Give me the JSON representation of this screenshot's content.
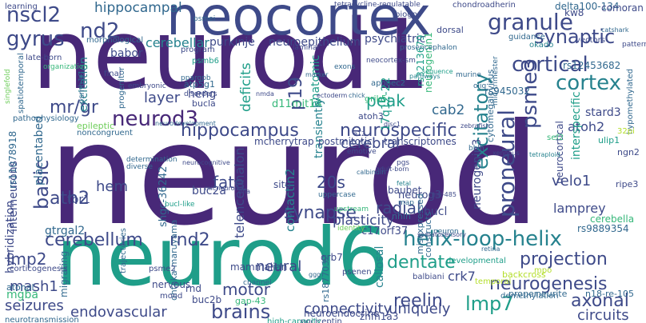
{
  "palette": {
    "c0": "#440154",
    "c1": "#482878",
    "c2": "#3e4a89",
    "c3": "#31688e",
    "c4": "#26828e",
    "c5": "#1f9e89",
    "c6": "#35b779",
    "c7": "#6dcd59",
    "c8": "#b4de2c",
    "c9": "#fde725"
  },
  "words": [
    {
      "text": "neurod",
      "color": "c1"
    },
    {
      "text": "neurod1",
      "color": "c1"
    },
    {
      "text": "neurod6",
      "color": "c5"
    },
    {
      "text": "neocortex",
      "color": "c2"
    },
    {
      "text": "nscl2",
      "color": "c2"
    },
    {
      "text": "gyrus",
      "color": "c2"
    },
    {
      "text": "nd2",
      "color": "c2"
    },
    {
      "text": "hippocampal",
      "color": "c3"
    },
    {
      "text": "neurod3",
      "color": "c1"
    },
    {
      "text": "mr/gr",
      "color": "c2"
    },
    {
      "text": "hippocampus",
      "color": "c2"
    },
    {
      "text": "neurospecific",
      "color": "c2"
    },
    {
      "text": "granule",
      "color": "c2"
    },
    {
      "text": "synaptic",
      "color": "c2"
    },
    {
      "text": "cortical",
      "color": "c2"
    },
    {
      "text": "cortex",
      "color": "c4"
    },
    {
      "text": "psme3",
      "color": "c2"
    },
    {
      "text": "excitatory",
      "color": "c4"
    },
    {
      "text": "proneural",
      "color": "c2"
    },
    {
      "text": "basic",
      "color": "c2"
    },
    {
      "text": "cerebellum",
      "color": "c2"
    },
    {
      "text": "ath2",
      "color": "c2"
    },
    {
      "text": "rnd2",
      "color": "c2"
    },
    {
      "text": "synapse",
      "color": "c2"
    },
    {
      "text": "helix-loop-helix",
      "color": "c4"
    },
    {
      "text": "neurogenesis",
      "color": "c2"
    },
    {
      "text": "projection",
      "color": "c2"
    },
    {
      "text": "dentate",
      "color": "c5"
    },
    {
      "text": "lmp7",
      "color": "c5"
    },
    {
      "text": "axonal",
      "color": "c2"
    },
    {
      "text": "reelin",
      "color": "c2"
    },
    {
      "text": "brains",
      "color": "c2"
    },
    {
      "text": "endovascular",
      "color": "c2"
    },
    {
      "text": "connectivity",
      "color": "c2"
    },
    {
      "text": "uniquely",
      "color": "c2"
    },
    {
      "text": "circuits",
      "color": "c2"
    },
    {
      "text": "seizures",
      "color": "c2"
    },
    {
      "text": "mash1",
      "color": "c2"
    },
    {
      "text": "lmp2",
      "color": "c2"
    },
    {
      "text": "motor",
      "color": "c2"
    },
    {
      "text": "hem",
      "color": "c2"
    },
    {
      "text": "fate",
      "color": "c2"
    },
    {
      "text": "20s",
      "color": "c2"
    },
    {
      "text": "p19",
      "color": "c2"
    },
    {
      "text": "layer",
      "color": "c2"
    },
    {
      "text": "peak",
      "color": "c5"
    },
    {
      "text": "deficits",
      "color": "c5"
    },
    {
      "text": "cerebral",
      "color": "c2"
    },
    {
      "text": "radial",
      "color": "c2"
    },
    {
      "text": "plasticity",
      "color": "c2"
    },
    {
      "text": "neural",
      "color": "c2"
    },
    {
      "text": "crk7",
      "color": "c2"
    },
    {
      "text": "lamprey",
      "color": "c2"
    },
    {
      "text": "cab2",
      "color": "c3"
    },
    {
      "text": "atoh2",
      "color": "c2"
    },
    {
      "text": "stard3",
      "color": "c2"
    },
    {
      "text": "velo1",
      "color": "c2"
    },
    {
      "text": "cerebellar",
      "color": "c4"
    },
    {
      "text": "purkinje",
      "color": "c2"
    },
    {
      "text": "neuroepithelium",
      "color": "c2"
    },
    {
      "text": "psychiatric",
      "color": "c2"
    },
    {
      "text": "babor",
      "color": "c2"
    },
    {
      "text": "heng",
      "color": "c2"
    },
    {
      "text": "tbr1",
      "color": "c2"
    },
    {
      "text": "interneurons",
      "color": "c2"
    },
    {
      "text": "excitation",
      "color": "c4"
    },
    {
      "text": "placentabed",
      "color": "c3"
    },
    {
      "text": "rs11078918",
      "color": "c3"
    },
    {
      "text": "hybridization",
      "color": "c2"
    },
    {
      "text": "gtrgal2",
      "color": "c3"
    },
    {
      "text": "buc2a",
      "color": "c2"
    },
    {
      "text": "buc2b",
      "color": "c2"
    },
    {
      "text": "telencephalon",
      "color": "c2"
    },
    {
      "text": "shgc-36242",
      "color": "c3"
    },
    {
      "text": "contactin2",
      "color": "c4"
    },
    {
      "text": "c17orf37",
      "color": "c2"
    },
    {
      "text": "neurog3",
      "color": "c2"
    },
    {
      "text": "baubet",
      "color": "c2"
    },
    {
      "text": "nhlh",
      "color": "c3"
    },
    {
      "text": "neurogenin3",
      "color": "c2"
    },
    {
      "text": "neurocortical",
      "color": "c2"
    },
    {
      "text": "interspecific",
      "color": "c5"
    },
    {
      "text": "rs9889354",
      "color": "c3"
    },
    {
      "text": "cerebella",
      "color": "c6"
    },
    {
      "text": "kw8",
      "color": "c2"
    },
    {
      "text": "delta100-134",
      "color": "c3"
    },
    {
      "text": "comoran",
      "color": "c2"
    },
    {
      "text": "rs945032",
      "color": "c3"
    },
    {
      "text": "rs12453682",
      "color": "c3"
    },
    {
      "text": "17q12-22",
      "color": "c5"
    },
    {
      "text": "rs3213679",
      "color": "c5"
    },
    {
      "text": "cytomegalovirus",
      "color": "c3"
    },
    {
      "text": "d11mit14",
      "color": "c6"
    },
    {
      "text": "anatomic",
      "color": "c5"
    },
    {
      "text": "neurogenin1",
      "color": "c6"
    },
    {
      "text": "atp5g1",
      "color": "c3"
    },
    {
      "text": "bucla",
      "color": "c2"
    },
    {
      "text": "bucl",
      "color": "c2"
    },
    {
      "text": "situ",
      "color": "c2"
    },
    {
      "text": "transiently",
      "color": "c4"
    },
    {
      "text": "mcherrytrap",
      "color": "c2"
    },
    {
      "text": "postmitotic",
      "color": "c2"
    },
    {
      "text": "transcriptomes",
      "color": "c2"
    },
    {
      "text": "atonal",
      "color": "c3"
    },
    {
      "text": "mgba",
      "color": "c6"
    },
    {
      "text": "callosal",
      "color": "c4"
    },
    {
      "text": "grb7",
      "color": "c2"
    },
    {
      "text": "migrating",
      "color": "c3"
    },
    {
      "text": "ohtaka-maruyama",
      "color": "c3"
    },
    {
      "text": "nervous",
      "color": "c2"
    },
    {
      "text": "rnd",
      "color": "c2"
    },
    {
      "text": "gap-43",
      "color": "c6"
    },
    {
      "text": "mammalian",
      "color": "c2"
    },
    {
      "text": "rs1877032",
      "color": "c3"
    },
    {
      "text": "neuroendocrine",
      "color": "c2"
    },
    {
      "text": "znfn1a3",
      "color": "c2"
    },
    {
      "text": "neurite",
      "color": "c3"
    },
    {
      "text": "n18-re-105",
      "color": "c3"
    },
    {
      "text": "misexpressed",
      "color": "c3"
    },
    {
      "text": "constructs",
      "color": "c3"
    },
    {
      "text": "dorsal",
      "color": "c2"
    },
    {
      "text": "learning",
      "color": "c2"
    },
    {
      "text": "chondroadherin",
      "color": "c2"
    },
    {
      "text": "tetracycline-regulatable",
      "color": "c2"
    },
    {
      "text": "biogps",
      "color": "c2"
    },
    {
      "text": "late-born",
      "color": "c2"
    },
    {
      "text": "morphological",
      "color": "c3"
    },
    {
      "text": "program",
      "color": "c2"
    },
    {
      "text": "vectors",
      "color": "c2"
    },
    {
      "text": "guidance",
      "color": "c3"
    },
    {
      "text": "okado",
      "color": "c4"
    },
    {
      "text": "singlefold",
      "color": "c7"
    },
    {
      "text": "spatiotemporal",
      "color": "c3"
    },
    {
      "text": "psmb10",
      "color": "c3"
    },
    {
      "text": "psmb6",
      "color": "c5"
    },
    {
      "text": "progenitor",
      "color": "c3"
    },
    {
      "text": "epileptic",
      "color": "c7"
    },
    {
      "text": "noncongruent",
      "color": "c3"
    },
    {
      "text": "pathophysiology",
      "color": "c3"
    },
    {
      "text": "apobec2",
      "color": "c3"
    },
    {
      "text": "grik5",
      "color": "c6"
    },
    {
      "text": "final",
      "color": "c2"
    },
    {
      "text": "neocortex-sm",
      "color": "c2"
    },
    {
      "text": "corticogenesis",
      "color": "c2"
    },
    {
      "text": "psme2",
      "color": "c2"
    },
    {
      "text": "balbiani",
      "color": "c2"
    },
    {
      "text": "developmental",
      "color": "c5"
    },
    {
      "text": "proper",
      "color": "c3"
    },
    {
      "text": "demethylation",
      "color": "c3"
    },
    {
      "text": "temporal",
      "color": "c8"
    },
    {
      "text": "backcross",
      "color": "c8"
    },
    {
      "text": "psenen",
      "color": "c2"
    },
    {
      "text": "ulip1",
      "color": "c5"
    },
    {
      "text": "ngn2",
      "color": "c2"
    },
    {
      "text": "ripe3",
      "color": "c2"
    },
    {
      "text": "sef2",
      "color": "c6"
    },
    {
      "text": "hypomethylated",
      "color": "c3"
    },
    {
      "text": "atoh3",
      "color": "c2"
    },
    {
      "text": "neuron",
      "color": "c3"
    },
    {
      "text": "trajectories",
      "color": "c3"
    },
    {
      "text": "map",
      "color": "c3"
    },
    {
      "text": "identity",
      "color": "c7"
    },
    {
      "text": "emotive",
      "color": "c2"
    },
    {
      "text": "determination",
      "color": "c3"
    },
    {
      "text": "diverse",
      "color": "c3"
    },
    {
      "text": "micneuron",
      "color": "c2"
    },
    {
      "text": "nociceptin",
      "color": "c2"
    },
    {
      "text": "high-capacity",
      "color": "c5"
    },
    {
      "text": "neurotransmission",
      "color": "c3"
    },
    {
      "text": "channel",
      "color": "c3"
    },
    {
      "text": "uppercase",
      "color": "c3"
    },
    {
      "text": "32pi",
      "color": "c8"
    },
    {
      "text": "mood",
      "color": "c2"
    },
    {
      "text": "disorders",
      "color": "c2"
    },
    {
      "text": "ppargpb",
      "color": "c3"
    },
    {
      "text": "catshark",
      "color": "c3"
    },
    {
      "text": "mid-trimester",
      "color": "c3"
    },
    {
      "text": "laminar",
      "color": "c2"
    },
    {
      "text": "prosencephalon",
      "color": "c3"
    },
    {
      "text": "organization",
      "color": "c6"
    },
    {
      "text": "psmei",
      "color": "c3"
    },
    {
      "text": "neurodevelopment",
      "color": "c3"
    },
    {
      "text": "patterns",
      "color": "c2"
    },
    {
      "text": "upstream",
      "color": "c6"
    },
    {
      "text": "pgs",
      "color": "c2"
    },
    {
      "text": "bhlh",
      "color": "c3"
    },
    {
      "text": "mpo",
      "color": "c8"
    },
    {
      "text": "somatosensory",
      "color": "c2"
    },
    {
      "text": "mir-485",
      "color": "c2"
    },
    {
      "text": "olig",
      "color": "c3"
    },
    {
      "text": "bucl-like",
      "color": "c5"
    },
    {
      "text": "exons",
      "color": "c3"
    },
    {
      "text": "murine",
      "color": "c3"
    },
    {
      "text": "embryonic",
      "color": "c2"
    },
    {
      "text": "e12",
      "color": "c2"
    },
    {
      "text": "calbindin",
      "color": "c3"
    },
    {
      "text": "nmda",
      "color": "c2"
    },
    {
      "text": "tetraploid",
      "color": "c4"
    },
    {
      "text": "fetal",
      "color": "c4"
    },
    {
      "text": "ggg",
      "color": "c3"
    },
    {
      "text": "neurocognitive",
      "color": "c2"
    },
    {
      "text": "sequence",
      "color": "c5"
    },
    {
      "text": "adult-born",
      "color": "c2"
    },
    {
      "text": "disc1",
      "color": "c2"
    },
    {
      "text": "marker",
      "color": "c3"
    },
    {
      "text": "retina",
      "color": "c3"
    },
    {
      "text": "xenopus",
      "color": "c2"
    },
    {
      "text": "zebrafish",
      "color": "c2"
    },
    {
      "text": "chick",
      "color": "c3"
    },
    {
      "text": "ectoderm",
      "color": "c2"
    },
    {
      "text": "pathways",
      "color": "c4"
    },
    {
      "text": "dna",
      "color": "c2"
    }
  ]
}
